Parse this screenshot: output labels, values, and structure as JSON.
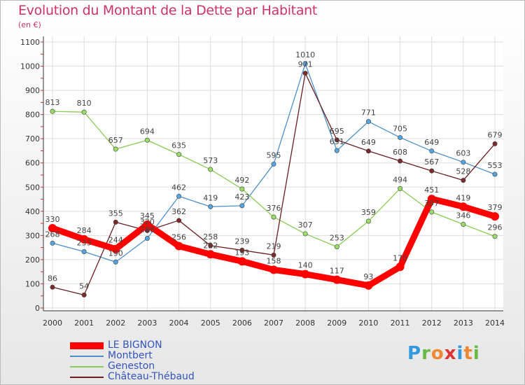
{
  "title": "Evolution du Montant de la Dette par Habitant",
  "unit": "(en €)",
  "logo": {
    "text": "Proxiti",
    "colors": [
      "#3399dd",
      "#66bb44",
      "#ee8833",
      "#dd3333",
      "#3399dd",
      "#ee8833",
      "#66bb44"
    ]
  },
  "chart_data": {
    "type": "line",
    "x": [
      "2000",
      "2001",
      "2002",
      "2003",
      "2004",
      "2005",
      "2006",
      "2007",
      "2008",
      "2009",
      "2010",
      "2011",
      "2012",
      "2013",
      "2014"
    ],
    "ylim": [
      0,
      1100
    ],
    "yticks": [
      "0",
      "100",
      "200",
      "300",
      "400",
      "500",
      "600",
      "700",
      "800",
      "900",
      "1000",
      "1100"
    ],
    "grid": true,
    "legend_position": "bottom-left",
    "series": [
      {
        "name": "Montbert",
        "color": "#4d8fcc",
        "point_color": "#55a4dd",
        "values": [
          268,
          233,
          190,
          288,
          462,
          419,
          423,
          595,
          1010,
          651,
          771,
          705,
          649,
          603,
          553
        ],
        "labels": [
          "268",
          "233",
          "190",
          "288",
          "462",
          "419",
          "423",
          "595",
          "1010",
          "651",
          "771",
          "705",
          "649",
          "603",
          "553"
        ]
      },
      {
        "name": "Geneston",
        "color": "#88cc55",
        "point_color": "#99dd66",
        "values": [
          813,
          810,
          657,
          694,
          635,
          573,
          492,
          376,
          307,
          253,
          359,
          494,
          397,
          346,
          296
        ],
        "labels": [
          "813",
          "810",
          "657",
          "694",
          "635",
          "573",
          "492",
          "376",
          "307",
          "253",
          "359",
          "494",
          "397",
          "346",
          "296"
        ]
      },
      {
        "name": "Château-Thébaud",
        "color": "#6b1f1f",
        "point_color": "#7a2a2a",
        "values": [
          86,
          54,
          355,
          320,
          362,
          258,
          239,
          219,
          971,
          695,
          649,
          608,
          567,
          528,
          679
        ],
        "labels": [
          "86",
          "54",
          "355",
          "320",
          "362",
          "258",
          "239",
          "219",
          "971",
          "695",
          "649",
          "608",
          "567",
          "528",
          "679"
        ]
      },
      {
        "name": "LE BIGNON",
        "color": "#ff0000",
        "point_color": "#ff0000",
        "values": [
          330,
          284,
          244,
          345,
          256,
          222,
          193,
          158,
          140,
          117,
          93,
          170,
          451,
          419,
          379
        ],
        "labels": [
          "330",
          "284",
          "244",
          "345",
          "256",
          "222",
          "193",
          "158",
          "140",
          "117",
          "93",
          "170",
          "451",
          "419",
          "379"
        ]
      }
    ]
  }
}
